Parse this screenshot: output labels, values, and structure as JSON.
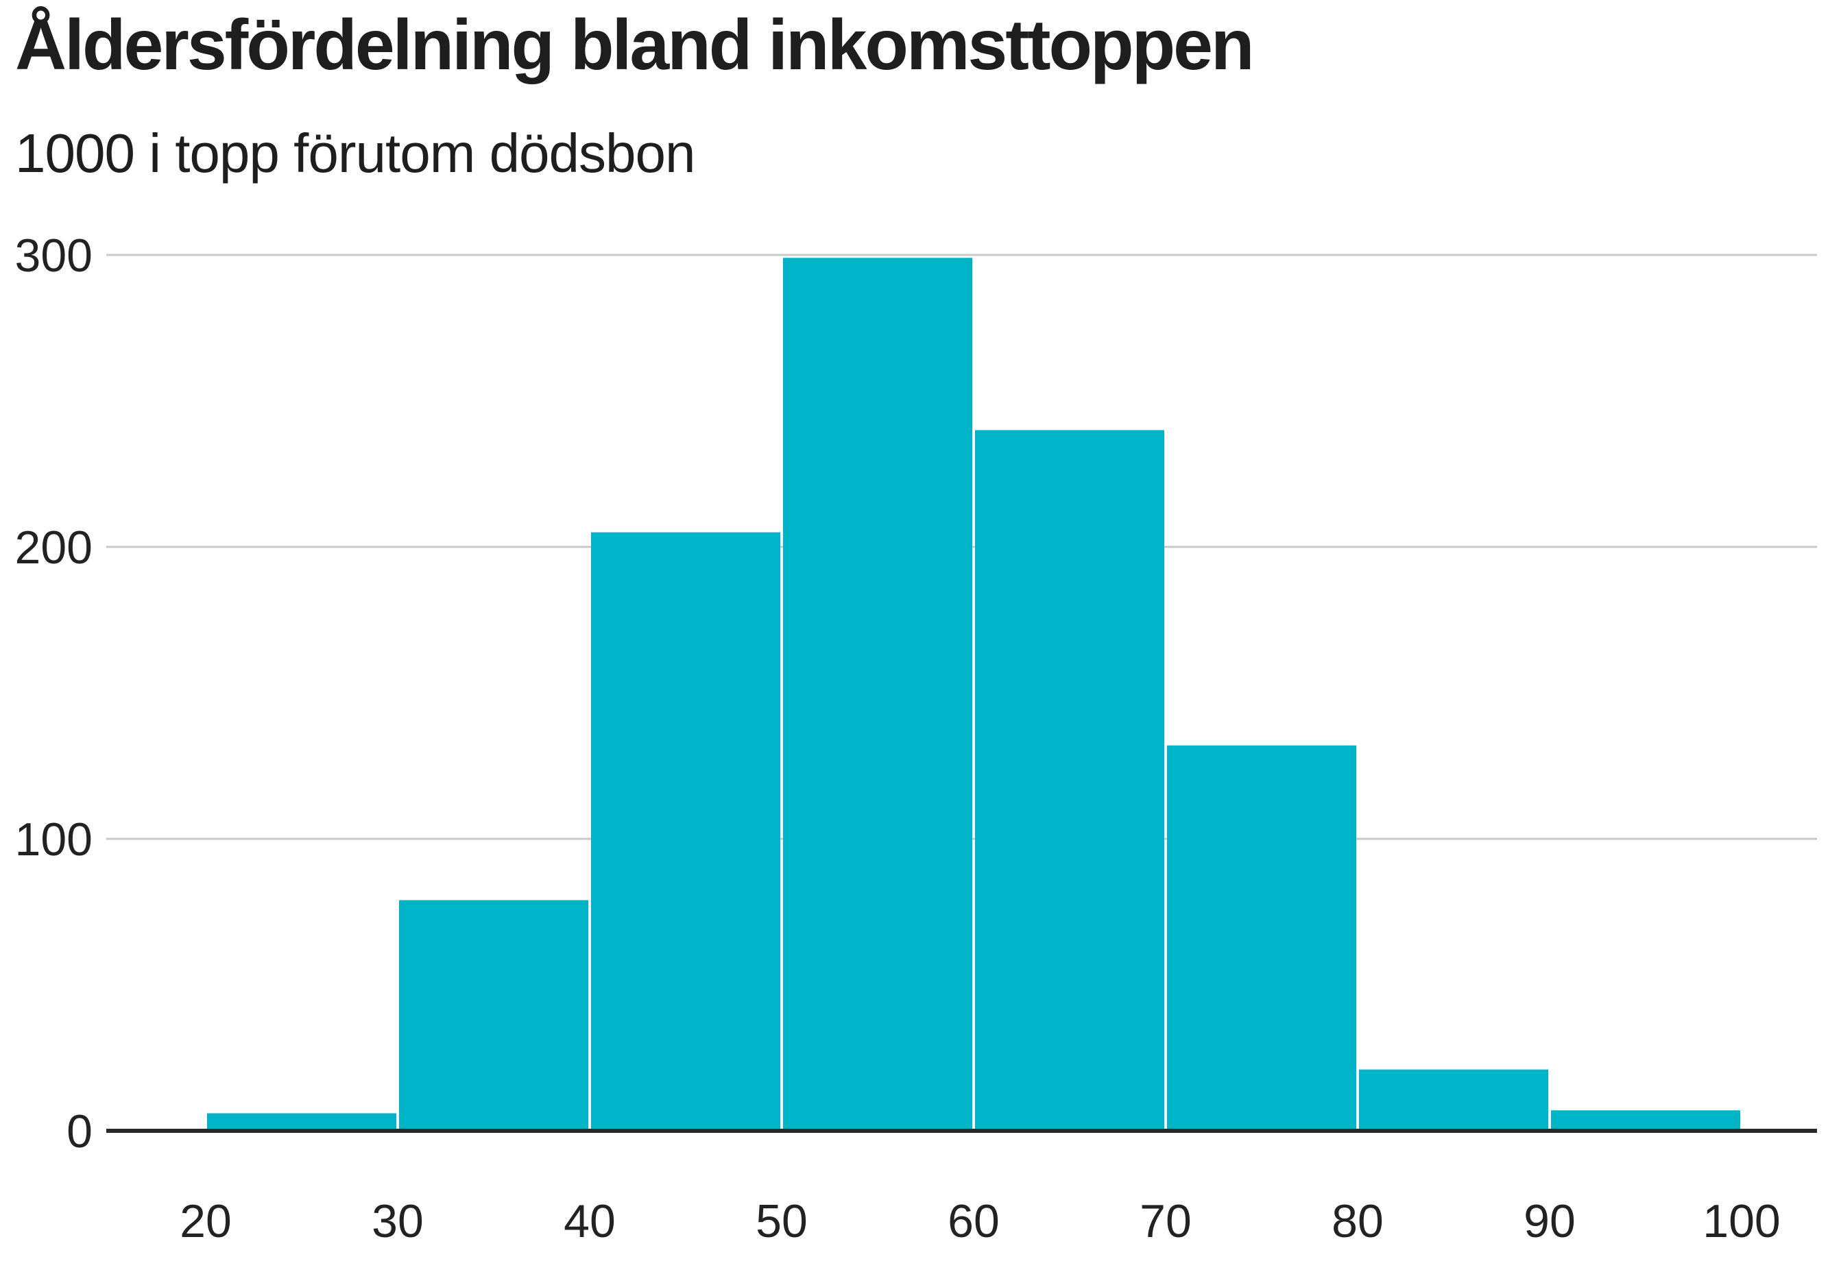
{
  "chart_data": {
    "type": "bar",
    "title": "Åldersfördelning bland inkomsttoppen",
    "subtitle": "1000 i topp förutom dödsbon",
    "xlabel": "",
    "ylabel": "",
    "bin_edges": [
      20,
      30,
      40,
      50,
      60,
      70,
      80,
      90,
      100
    ],
    "values": [
      6,
      79,
      205,
      299,
      240,
      132,
      21,
      7
    ],
    "x_ticks": [
      20,
      30,
      40,
      50,
      60,
      70,
      80,
      90,
      100
    ],
    "y_ticks": [
      0,
      100,
      200,
      300
    ],
    "ylim": [
      0,
      300
    ],
    "xlim": [
      15,
      102
    ],
    "grid": true,
    "bar_color": "#00b4c8",
    "grid_color": "#c8c8c8",
    "axis_color": "#2a2a2a"
  }
}
